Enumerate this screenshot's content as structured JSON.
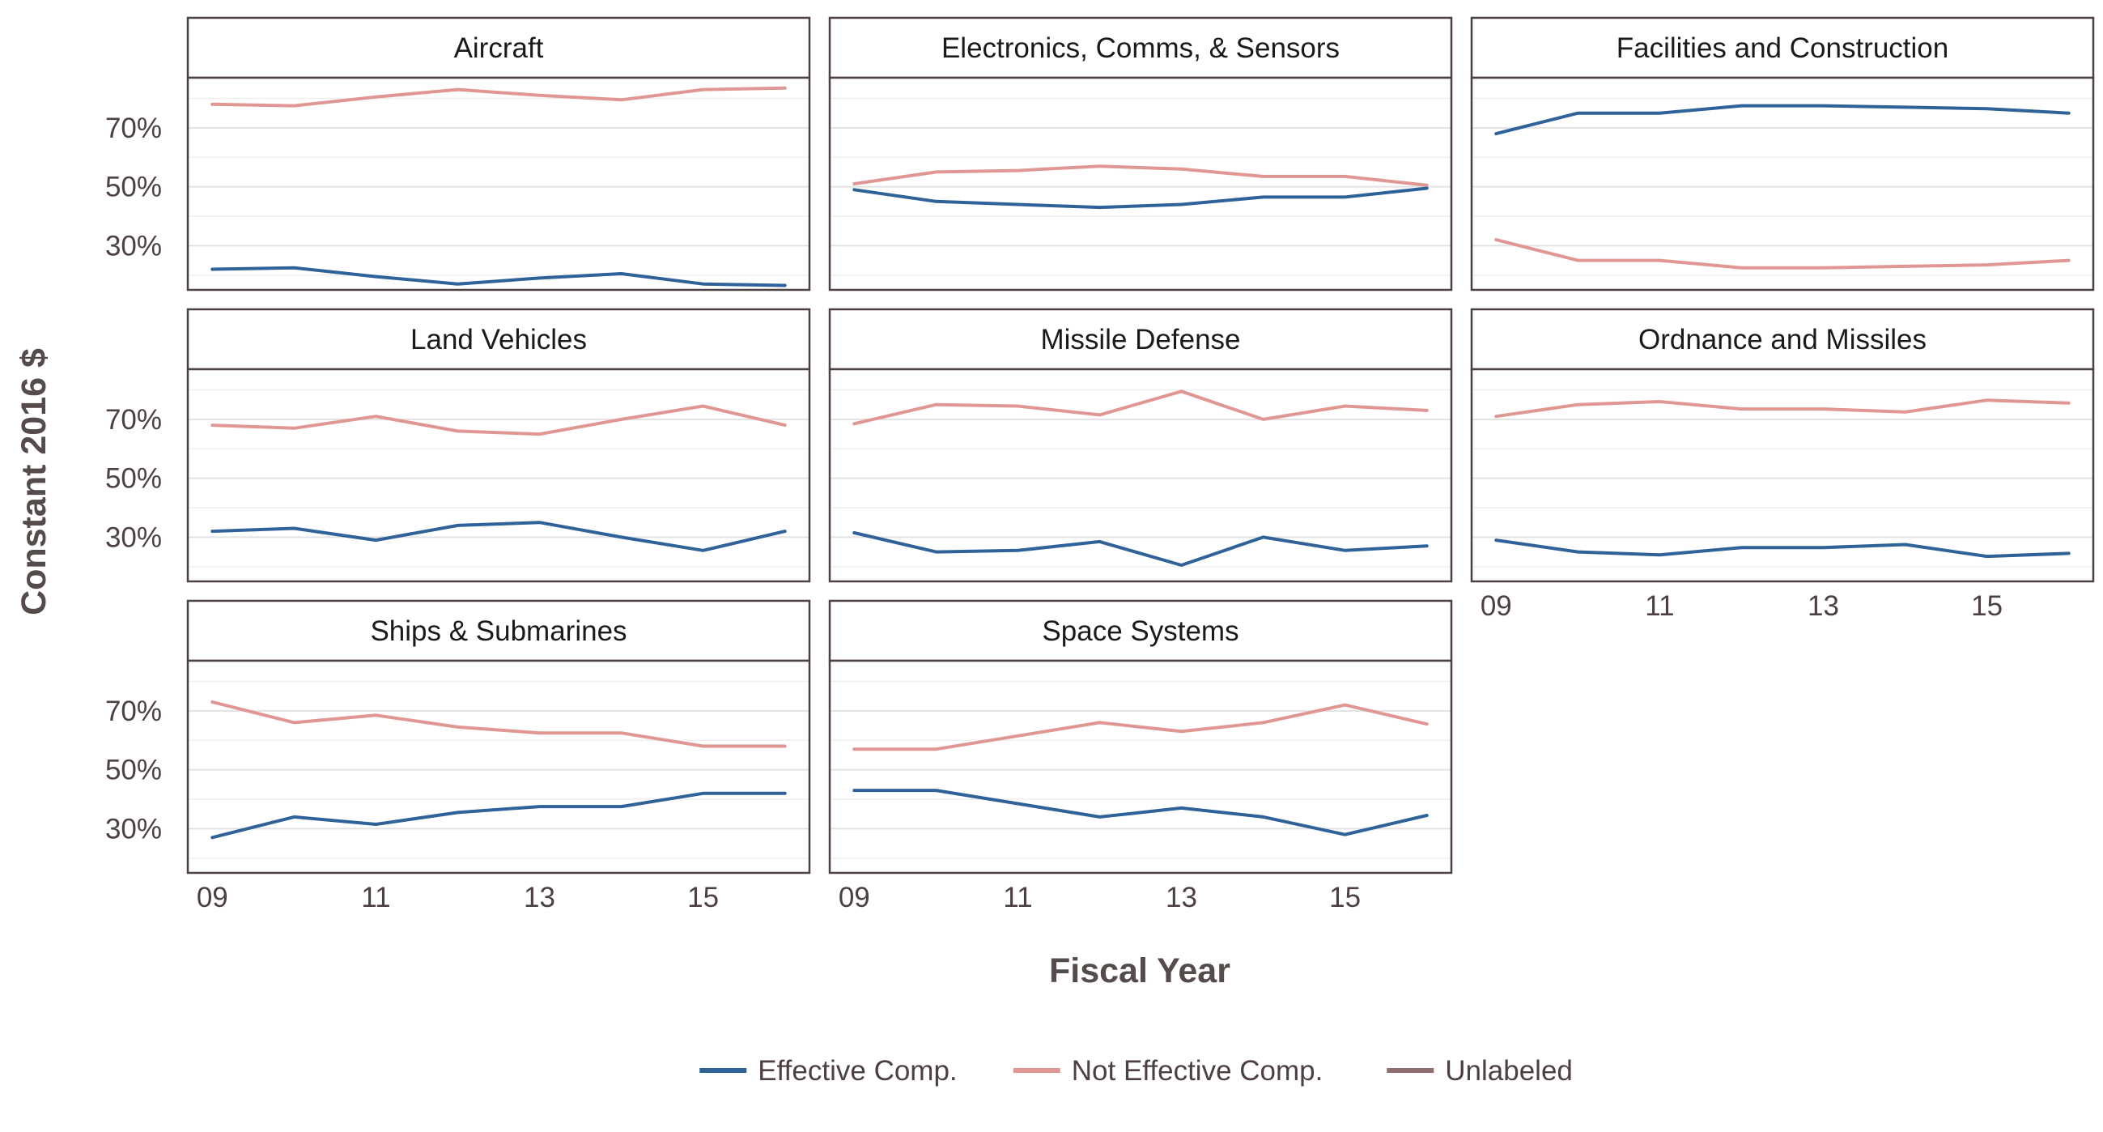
{
  "chart_data": {
    "type": "line",
    "title": "",
    "xlabel": "Fiscal Year",
    "ylabel": "Constant 2016 $",
    "x": [
      2009,
      2010,
      2011,
      2012,
      2013,
      2014,
      2015,
      2016
    ],
    "x_ticks": [
      2009,
      2011,
      2013,
      2015
    ],
    "x_tick_labels": [
      "09",
      "11",
      "13",
      "15"
    ],
    "xlim": [
      2008.7,
      2016.3
    ],
    "ylim": [
      0.15,
      0.87
    ],
    "y_ticks": [
      0.3,
      0.5,
      0.7
    ],
    "y_tick_labels": [
      "30%",
      "50%",
      "70%"
    ],
    "grid": true,
    "legend_position": "bottom",
    "colors": {
      "Effective Comp.": "#2f6299",
      "Not Effective Comp.": "#e09793",
      "Unlabeled": "#8f6e70"
    },
    "legend": [
      {
        "name": "Effective Comp.",
        "color": "#2f6299"
      },
      {
        "name": "Not Effective Comp.",
        "color": "#e09793"
      },
      {
        "name": "Unlabeled",
        "color": "#8f6e70"
      }
    ],
    "panels": [
      {
        "title": "Aircraft",
        "series": [
          {
            "name": "Effective Comp.",
            "values": [
              0.22,
              0.225,
              0.195,
              0.17,
              0.19,
              0.205,
              0.17,
              0.165
            ]
          },
          {
            "name": "Not Effective Comp.",
            "values": [
              0.78,
              0.775,
              0.805,
              0.83,
              0.81,
              0.795,
              0.83,
              0.835
            ]
          }
        ]
      },
      {
        "title": "Electronics, Comms, & Sensors",
        "series": [
          {
            "name": "Effective Comp.",
            "values": [
              0.49,
              0.45,
              0.44,
              0.43,
              0.44,
              0.465,
              0.465,
              0.495
            ]
          },
          {
            "name": "Not Effective Comp.",
            "values": [
              0.51,
              0.55,
              0.555,
              0.57,
              0.56,
              0.535,
              0.535,
              0.505
            ]
          }
        ]
      },
      {
        "title": "Facilities and Construction",
        "series": [
          {
            "name": "Effective Comp.",
            "values": [
              0.68,
              0.75,
              0.75,
              0.775,
              0.775,
              0.77,
              0.765,
              0.75
            ]
          },
          {
            "name": "Not Effective Comp.",
            "values": [
              0.32,
              0.25,
              0.25,
              0.225,
              0.225,
              0.23,
              0.235,
              0.25
            ]
          }
        ]
      },
      {
        "title": "Land Vehicles",
        "series": [
          {
            "name": "Effective Comp.",
            "values": [
              0.32,
              0.33,
              0.29,
              0.34,
              0.35,
              0.3,
              0.255,
              0.32
            ]
          },
          {
            "name": "Not Effective Comp.",
            "values": [
              0.68,
              0.67,
              0.71,
              0.66,
              0.65,
              0.7,
              0.745,
              0.68
            ]
          }
        ]
      },
      {
        "title": "Missile Defense",
        "series": [
          {
            "name": "Effective Comp.",
            "values": [
              0.315,
              0.25,
              0.255,
              0.285,
              0.205,
              0.3,
              0.255,
              0.27
            ]
          },
          {
            "name": "Not Effective Comp.",
            "values": [
              0.685,
              0.75,
              0.745,
              0.715,
              0.795,
              0.7,
              0.745,
              0.73
            ]
          }
        ]
      },
      {
        "title": "Ordnance and Missiles",
        "series": [
          {
            "name": "Effective Comp.",
            "values": [
              0.29,
              0.25,
              0.24,
              0.265,
              0.265,
              0.275,
              0.235,
              0.245
            ]
          },
          {
            "name": "Not Effective Comp.",
            "values": [
              0.71,
              0.75,
              0.76,
              0.735,
              0.735,
              0.725,
              0.765,
              0.755
            ]
          }
        ]
      },
      {
        "title": "Ships & Submarines",
        "series": [
          {
            "name": "Effective Comp.",
            "values": [
              0.27,
              0.34,
              0.315,
              0.355,
              0.375,
              0.375,
              0.42,
              0.42
            ]
          },
          {
            "name": "Not Effective Comp.",
            "values": [
              0.73,
              0.66,
              0.685,
              0.645,
              0.625,
              0.625,
              0.58,
              0.58
            ]
          }
        ]
      },
      {
        "title": "Space Systems",
        "series": [
          {
            "name": "Effective Comp.",
            "values": [
              0.43,
              0.43,
              0.385,
              0.34,
              0.37,
              0.34,
              0.28,
              0.345
            ]
          },
          {
            "name": "Not Effective Comp.",
            "values": [
              0.57,
              0.57,
              0.615,
              0.66,
              0.63,
              0.66,
              0.72,
              0.655
            ]
          }
        ]
      }
    ]
  }
}
